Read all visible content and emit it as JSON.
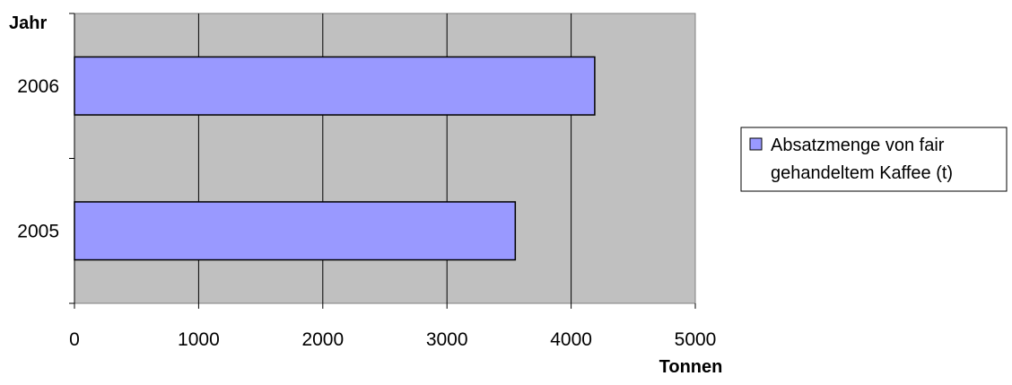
{
  "chart_data": {
    "type": "bar",
    "orientation": "horizontal",
    "categories": [
      "2006",
      "2005"
    ],
    "series": [
      {
        "name": "Absatzmenge von fair gehandeltem Kaffee (t)",
        "values": [
          4190,
          3550
        ],
        "color": "#9999ff"
      }
    ],
    "xlabel": "Tonnen",
    "ylabel": "Jahr",
    "xlim": [
      0,
      5000
    ],
    "xticks": [
      "0",
      "1000",
      "2000",
      "3000",
      "4000",
      "5000"
    ],
    "grid": true,
    "plot_background": "#c0c0c0",
    "legend_position": "right",
    "legend_lines": [
      "Absatzmenge von fair",
      "gehandeltem Kaffee (t)"
    ]
  }
}
